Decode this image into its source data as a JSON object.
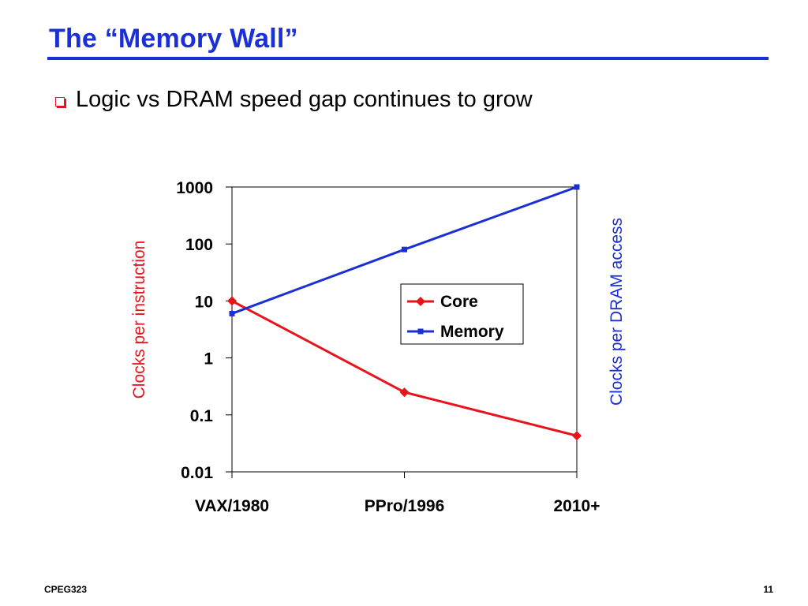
{
  "slide": {
    "title": "The “Memory Wall”",
    "bullet": "Logic vs DRAM speed gap continues to grow",
    "footer_left": "CPEG323",
    "page_number": "11"
  },
  "colors": {
    "title": "#1a2fd6",
    "bullet_icon": "#e8141c",
    "core": "#e8141c",
    "memory": "#1a2fd6"
  },
  "chart_data": {
    "type": "line",
    "y_scale": "log",
    "ylim": [
      0.01,
      1000
    ],
    "y_ticks": [
      "1000",
      "100",
      "10",
      "1",
      "0.1",
      "0.01"
    ],
    "y_tick_values": [
      1000,
      100,
      10,
      1,
      0.1,
      0.01
    ],
    "categories": [
      "VAX/1980",
      "PPro/1996",
      "2010+"
    ],
    "ylabel_left": "Clocks per instruction",
    "ylabel_right": "Clocks per DRAM access",
    "legend_position": "right-center",
    "grid": false,
    "series": [
      {
        "name": "Core",
        "values": [
          10,
          0.25,
          0.043
        ],
        "color": "#e8141c",
        "marker": "diamond"
      },
      {
        "name": "Memory",
        "values": [
          6,
          80,
          1000
        ],
        "color": "#1a2fd6",
        "marker": "square"
      }
    ]
  }
}
